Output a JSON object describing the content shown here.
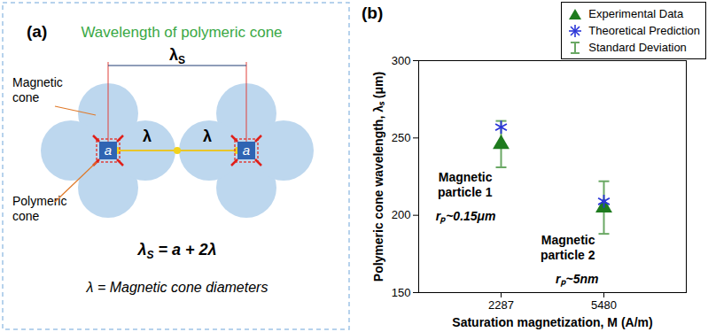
{
  "diagram": {
    "panel_label": "(a)",
    "title": "Wavelength of polymeric cone",
    "magnetic_cone_label": [
      "Magnetic",
      "cone"
    ],
    "polymeric_cone_label": [
      "Polymeric",
      "cone"
    ],
    "square_label": "a",
    "spacing_label": "λ",
    "wavelength_label": {
      "symbol": "λ",
      "sub": "S"
    },
    "formula": {
      "symbol": "λ",
      "sub": "S",
      "rest": " = a + 2λ"
    },
    "definition": "λ = Magnetic cone diameters"
  },
  "chart_data": {
    "type": "scatter",
    "panel_label": "(b)",
    "x_label": "Saturation magnetization, M (A/m)",
    "y_label": "Polymeric cone wavelength, λₛ (μm)",
    "categories": [
      "2287",
      "5480"
    ],
    "ylim": [
      150,
      300
    ],
    "yticks": [
      150,
      200,
      250,
      300
    ],
    "grid": false,
    "legend": "top-right",
    "series": [
      {
        "name": "Experimental Data",
        "color": "#1e7b1e",
        "marker": "triangle",
        "values": [
          246,
          205
        ],
        "error_bars": {
          "name": "Standard Deviation",
          "color": "#6aa864",
          "values": [
            15,
            17
          ]
        }
      },
      {
        "name": "Theoretical Prediction",
        "color": "#2a35d8",
        "marker": "asterisk",
        "values": [
          257,
          209
        ]
      }
    ],
    "annotations": [
      {
        "category": "2287",
        "lines": [
          "Magnetic",
          "particle 1"
        ],
        "note": "rₚ~0.15μm"
      },
      {
        "category": "5480",
        "lines": [
          "Magnetic",
          "particle 2"
        ],
        "note": "rₚ~5nm"
      }
    ]
  }
}
